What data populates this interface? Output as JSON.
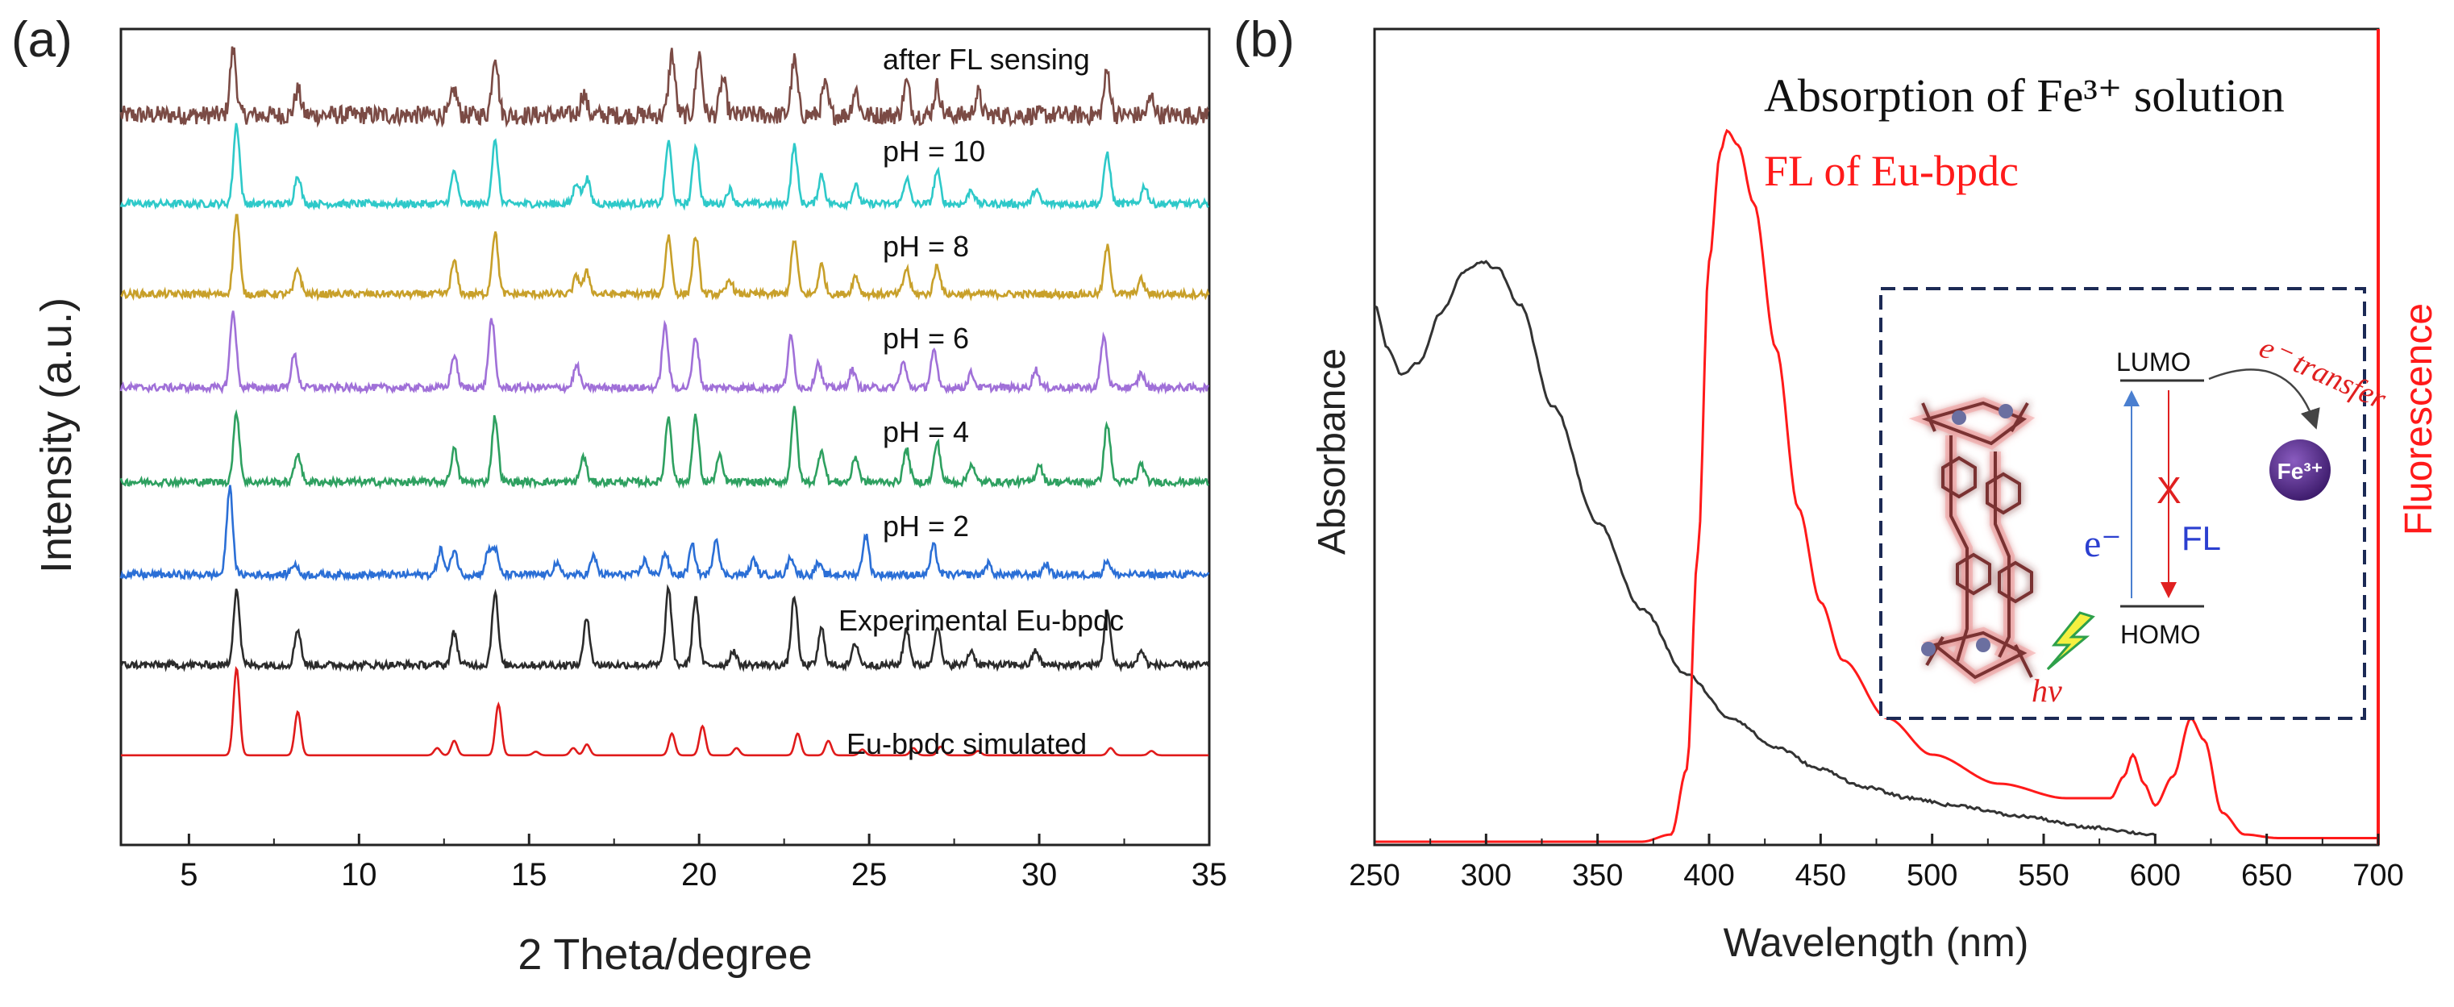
{
  "figure": {
    "panel_a": {
      "letter": "(a)",
      "xlabel": "2 Theta/degree",
      "ylabel": "Intensity (a.u.)",
      "xlim": [
        3,
        35
      ],
      "xticks": [
        "5",
        "10",
        "15",
        "20",
        "25",
        "30",
        "35"
      ]
    },
    "panel_b": {
      "letter": "(b)",
      "xlabel": "Wavelength (nm)",
      "ylabel_left": "Absorbance",
      "ylabel_right": "Fluorescence",
      "xlim": [
        250,
        700
      ],
      "xticks": [
        "250",
        "300",
        "350",
        "400",
        "450",
        "500",
        "550",
        "600",
        "650",
        "700"
      ],
      "legend": {
        "absorption": "Absorption of Fe³⁺ solution",
        "fl": "FL of Eu-bpdc"
      },
      "inset": {
        "lumo": "LUMO",
        "homo": "HOMO",
        "fl": "FL",
        "x_mark": "X",
        "electron": "e⁻",
        "transfer": "e⁻ transfer",
        "hv": "hν",
        "fe": "Fe³⁺"
      }
    }
  },
  "chart_data": [
    {
      "type": "line",
      "title": "(a)",
      "xlabel": "2 Theta/degree",
      "ylabel": "Intensity (a.u.)",
      "xlim": [
        3,
        35
      ],
      "grid": false,
      "series": [
        {
          "name": "after FL sensing",
          "color": "#7b4b45",
          "noise": 0.13,
          "peaks": [
            [
              6.3,
              0.9
            ],
            [
              8.2,
              0.35
            ],
            [
              12.8,
              0.35
            ],
            [
              14.0,
              0.85
            ],
            [
              16.6,
              0.3
            ],
            [
              19.2,
              0.85
            ],
            [
              20.0,
              0.85
            ],
            [
              20.7,
              0.5
            ],
            [
              22.8,
              0.75
            ],
            [
              23.7,
              0.4
            ],
            [
              24.6,
              0.35
            ],
            [
              26.1,
              0.45
            ],
            [
              27.0,
              0.4
            ],
            [
              28.2,
              0.3
            ],
            [
              32.0,
              0.6
            ],
            [
              33.3,
              0.25
            ]
          ]
        },
        {
          "name": "pH = 10",
          "color": "#2ec9c9",
          "noise": 0.05,
          "peaks": [
            [
              6.4,
              1.1
            ],
            [
              8.2,
              0.4
            ],
            [
              12.8,
              0.45
            ],
            [
              14.0,
              0.85
            ],
            [
              16.4,
              0.3
            ],
            [
              16.7,
              0.35
            ],
            [
              19.1,
              0.85
            ],
            [
              19.9,
              0.8
            ],
            [
              20.9,
              0.2
            ],
            [
              22.8,
              0.8
            ],
            [
              23.6,
              0.4
            ],
            [
              24.6,
              0.25
            ],
            [
              26.1,
              0.35
            ],
            [
              27.0,
              0.45
            ],
            [
              28.0,
              0.2
            ],
            [
              29.9,
              0.2
            ],
            [
              32.0,
              0.7
            ],
            [
              33.1,
              0.25
            ]
          ]
        },
        {
          "name": "pH = 8",
          "color": "#c8a02a",
          "noise": 0.05,
          "peaks": [
            [
              6.4,
              1.1
            ],
            [
              8.2,
              0.35
            ],
            [
              12.8,
              0.45
            ],
            [
              14.0,
              0.85
            ],
            [
              16.4,
              0.25
            ],
            [
              16.7,
              0.3
            ],
            [
              19.1,
              0.8
            ],
            [
              19.9,
              0.8
            ],
            [
              20.9,
              0.2
            ],
            [
              22.8,
              0.75
            ],
            [
              23.6,
              0.4
            ],
            [
              24.6,
              0.25
            ],
            [
              26.1,
              0.35
            ],
            [
              27.0,
              0.4
            ],
            [
              32.0,
              0.65
            ],
            [
              33.0,
              0.2
            ]
          ]
        },
        {
          "name": "pH = 6",
          "color": "#a070d8",
          "noise": 0.05,
          "peaks": [
            [
              6.3,
              1.05
            ],
            [
              8.1,
              0.45
            ],
            [
              12.8,
              0.45
            ],
            [
              13.9,
              0.95
            ],
            [
              16.4,
              0.3
            ],
            [
              19.0,
              0.85
            ],
            [
              19.9,
              0.7
            ],
            [
              22.7,
              0.7
            ],
            [
              23.5,
              0.35
            ],
            [
              24.5,
              0.25
            ],
            [
              26.0,
              0.35
            ],
            [
              26.9,
              0.5
            ],
            [
              28.0,
              0.2
            ],
            [
              29.9,
              0.25
            ],
            [
              31.9,
              0.7
            ],
            [
              33.0,
              0.2
            ]
          ]
        },
        {
          "name": "pH = 4",
          "color": "#2ea060",
          "noise": 0.05,
          "peaks": [
            [
              6.4,
              0.95
            ],
            [
              8.2,
              0.4
            ],
            [
              12.8,
              0.45
            ],
            [
              14.0,
              0.9
            ],
            [
              16.6,
              0.35
            ],
            [
              19.1,
              0.9
            ],
            [
              19.9,
              0.9
            ],
            [
              20.6,
              0.35
            ],
            [
              22.8,
              1.0
            ],
            [
              23.6,
              0.45
            ],
            [
              24.6,
              0.35
            ],
            [
              26.1,
              0.45
            ],
            [
              27.0,
              0.55
            ],
            [
              28.0,
              0.25
            ],
            [
              30.0,
              0.25
            ],
            [
              32.0,
              0.8
            ],
            [
              33.0,
              0.25
            ]
          ]
        },
        {
          "name": "pH = 2",
          "color": "#2b6fd6",
          "noise": 0.05,
          "peaks": [
            [
              6.2,
              1.2
            ],
            [
              8.1,
              0.15
            ],
            [
              12.4,
              0.35
            ],
            [
              12.8,
              0.35
            ],
            [
              13.8,
              0.3
            ],
            [
              14.0,
              0.35
            ],
            [
              15.8,
              0.15
            ],
            [
              16.9,
              0.25
            ],
            [
              18.4,
              0.2
            ],
            [
              19.0,
              0.3
            ],
            [
              19.8,
              0.4
            ],
            [
              20.5,
              0.5
            ],
            [
              21.6,
              0.2
            ],
            [
              22.7,
              0.25
            ],
            [
              23.5,
              0.15
            ],
            [
              24.9,
              0.55
            ],
            [
              26.9,
              0.4
            ],
            [
              28.5,
              0.15
            ],
            [
              30.2,
              0.15
            ],
            [
              32.0,
              0.2
            ]
          ]
        },
        {
          "name": "Experimental Eu-bpdc",
          "color": "#2b2b2b",
          "noise": 0.05,
          "peaks": [
            [
              6.4,
              1.05
            ],
            [
              8.2,
              0.5
            ],
            [
              12.8,
              0.45
            ],
            [
              14.0,
              1.0
            ],
            [
              16.7,
              0.65
            ],
            [
              19.1,
              1.05
            ],
            [
              19.9,
              0.95
            ],
            [
              21.0,
              0.2
            ],
            [
              22.8,
              0.95
            ],
            [
              23.6,
              0.5
            ],
            [
              24.6,
              0.3
            ],
            [
              26.1,
              0.5
            ],
            [
              27.0,
              0.55
            ],
            [
              28.0,
              0.2
            ],
            [
              29.9,
              0.2
            ],
            [
              32.0,
              0.75
            ],
            [
              33.0,
              0.2
            ]
          ]
        },
        {
          "name": "Eu-bpdc simulated",
          "color": "#e01b1b",
          "noise": 0.0,
          "peaks": [
            [
              6.4,
              1.2
            ],
            [
              8.2,
              0.6
            ],
            [
              12.3,
              0.1
            ],
            [
              12.8,
              0.2
            ],
            [
              14.1,
              0.7
            ],
            [
              15.2,
              0.05
            ],
            [
              16.3,
              0.1
            ],
            [
              16.7,
              0.15
            ],
            [
              19.2,
              0.3
            ],
            [
              20.1,
              0.4
            ],
            [
              21.1,
              0.1
            ],
            [
              22.9,
              0.3
            ],
            [
              23.8,
              0.2
            ],
            [
              24.8,
              0.08
            ],
            [
              26.3,
              0.1
            ],
            [
              27.1,
              0.12
            ],
            [
              28.2,
              0.06
            ],
            [
              32.1,
              0.1
            ],
            [
              33.3,
              0.06
            ]
          ]
        }
      ]
    },
    {
      "type": "line",
      "title": "(b)",
      "xlabel": "Wavelength (nm)",
      "ylabel": "Absorbance / Fluorescence",
      "xlim": [
        250,
        700
      ],
      "grid": false,
      "series": [
        {
          "name": "Absorption of Fe³⁺ solution",
          "color": "#333333",
          "axis": "left",
          "ylim": [
            0,
            1
          ],
          "points": [
            [
              250,
              0.74
            ],
            [
              256,
              0.68
            ],
            [
              262,
              0.645
            ],
            [
              270,
              0.66
            ],
            [
              280,
              0.73
            ],
            [
              290,
              0.785
            ],
            [
              298,
              0.8
            ],
            [
              305,
              0.79
            ],
            [
              315,
              0.74
            ],
            [
              330,
              0.6
            ],
            [
              350,
              0.44
            ],
            [
              370,
              0.32
            ],
            [
              390,
              0.23
            ],
            [
              410,
              0.17
            ],
            [
              430,
              0.13
            ],
            [
              450,
              0.1
            ],
            [
              470,
              0.075
            ],
            [
              490,
              0.06
            ],
            [
              510,
              0.05
            ],
            [
              540,
              0.035
            ],
            [
              570,
              0.02
            ],
            [
              600,
              0.01
            ]
          ]
        },
        {
          "name": "FL of Eu-bpdc",
          "color": "#ff1a1a",
          "axis": "right",
          "ylim": [
            0,
            1
          ],
          "points": [
            [
              250,
              0
            ],
            [
              370,
              0
            ],
            [
              383,
              0.01
            ],
            [
              390,
              0.1
            ],
            [
              395,
              0.4
            ],
            [
              400,
              0.8
            ],
            [
              405,
              0.95
            ],
            [
              408,
              0.98
            ],
            [
              413,
              0.96
            ],
            [
              420,
              0.88
            ],
            [
              430,
              0.68
            ],
            [
              440,
              0.46
            ],
            [
              450,
              0.33
            ],
            [
              460,
              0.25
            ],
            [
              480,
              0.17
            ],
            [
              500,
              0.12
            ],
            [
              530,
              0.08
            ],
            [
              560,
              0.06
            ],
            [
              580,
              0.06
            ],
            [
              586,
              0.09
            ],
            [
              590,
              0.12
            ],
            [
              595,
              0.08
            ],
            [
              600,
              0.05
            ],
            [
              608,
              0.09
            ],
            [
              616,
              0.17
            ],
            [
              622,
              0.14
            ],
            [
              630,
              0.04
            ],
            [
              640,
              0.01
            ],
            [
              655,
              0.005
            ],
            [
              700,
              0.005
            ]
          ]
        }
      ]
    }
  ]
}
